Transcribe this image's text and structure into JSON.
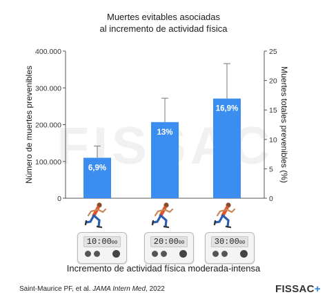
{
  "chart_data": {
    "type": "bar",
    "title": [
      "Muertes evitables asociadas",
      "al incremento de actividad física"
    ],
    "xlabel": "Incremento de actividad física moderada-intensa",
    "ylabel_left": "Número de muertes prevenibles",
    "ylabel_right": "Muertes totales prevenibles (%)",
    "categories": [
      "10:00",
      "20:00",
      "30:00"
    ],
    "category_suffix": "00",
    "values": [
      110000,
      207000,
      271000
    ],
    "error_upper": [
      142000,
      272000,
      366000
    ],
    "data_labels": [
      "6,9%",
      "13%",
      "16,9%"
    ],
    "left_ticks": [
      "0",
      "100.000",
      "200.000",
      "300.000",
      "400.000"
    ],
    "ylim_left": [
      0,
      400000
    ],
    "right_ticks": [
      "0",
      "5",
      "10",
      "15",
      "20",
      "25"
    ],
    "ylim_right": [
      0,
      25
    ],
    "grid": false,
    "bar_color": "#3b8ef0"
  },
  "watermark": "FISSAC",
  "source": {
    "authors": "Saint-Maurice PF, et al.",
    "journal": "JAMA Intern Med",
    "year": ", 2022"
  },
  "brand": {
    "name": "FISSAC",
    "plus": "+",
    "color": "#2a7de1"
  },
  "icons": [
    "runner-icon",
    "stopwatch-timer-icon"
  ]
}
